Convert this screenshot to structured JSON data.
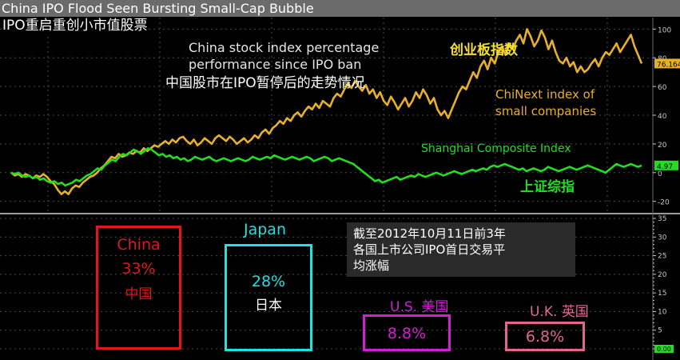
{
  "header": {
    "title": "China IPO Flood Seen Bursting Small-Cap Bubble"
  },
  "subtitle_cn": "IPO重启重创小市值股票",
  "annotation_en": "China stock index percentage\nperformance since IPO ban",
  "annotation_cn": "中国股市在IPO暂停后的走势情况",
  "panel_note": "截至2012年10月11日前3年\n各国上市公司IPO首日交易平\n均涨幅",
  "colors": {
    "chinext": "#e8b02a",
    "shanghai": "#22dd22",
    "china": "#e01818",
    "japan": "#22e0e0",
    "us": "#d020d0",
    "uk": "#e06890",
    "grid": "#4a4a4a",
    "axis": "#c8c8c8"
  },
  "chart_data": [
    {
      "type": "line",
      "series": [
        {
          "name": "ChiNext index of small companies",
          "name_cn": "创业板指数",
          "last_value_label": "76.164",
          "values": [
            0,
            -2,
            -1,
            -3,
            -1,
            -2,
            -4,
            -2,
            -3,
            -1,
            -3,
            -6,
            -8,
            -12,
            -15,
            -13,
            -15,
            -11,
            -9,
            -10,
            -7,
            -5,
            -3,
            -2,
            0,
            3,
            5,
            8,
            11,
            10,
            13,
            11,
            12,
            14,
            13,
            15,
            14,
            17,
            15,
            17,
            19,
            18,
            20,
            22,
            20,
            23,
            21,
            24,
            25,
            22,
            20,
            23,
            19,
            21,
            24,
            22,
            20,
            24,
            26,
            24,
            22,
            25,
            23,
            20,
            22,
            24,
            21,
            23,
            26,
            24,
            28,
            30,
            27,
            31,
            33,
            36,
            34,
            38,
            36,
            40,
            42,
            39,
            43,
            46,
            44,
            48,
            45,
            50,
            48,
            46,
            52,
            55,
            53,
            58,
            62,
            59,
            64,
            60,
            57,
            61,
            55,
            58,
            52,
            56,
            50,
            47,
            53,
            49,
            44,
            48,
            52,
            46,
            50,
            56,
            52,
            58,
            54,
            48,
            52,
            44,
            40,
            43,
            38,
            44,
            50,
            56,
            60,
            58,
            64,
            70,
            66,
            74,
            78,
            72,
            80,
            76,
            84,
            88,
            82,
            90,
            86,
            92,
            96,
            90,
            100,
            95,
            88,
            92,
            99,
            94,
            86,
            92,
            84,
            78,
            76,
            80,
            74,
            77,
            70,
            74,
            70,
            72,
            76,
            79,
            74,
            80,
            84,
            82,
            86,
            90,
            84,
            88,
            92,
            96,
            88,
            82,
            76
          ]
        },
        {
          "name": "Shanghai Composite Index",
          "name_cn": "上证综指",
          "last_value_label": "4.97",
          "values": [
            0,
            -1,
            0,
            -2,
            -3,
            -2,
            -4,
            -3,
            -5,
            -4,
            -6,
            -7,
            -6,
            -8,
            -7,
            -9,
            -8,
            -7,
            -5,
            -6,
            -4,
            -2,
            -1,
            1,
            3,
            2,
            5,
            7,
            9,
            8,
            11,
            13,
            12,
            14,
            16,
            15,
            13,
            15,
            17,
            16,
            14,
            12,
            13,
            11,
            12,
            10,
            11,
            9,
            10,
            8,
            9,
            11,
            10,
            9,
            10,
            11,
            9,
            8,
            9,
            10,
            9,
            8,
            9,
            10,
            9,
            8,
            9,
            11,
            10,
            9,
            10,
            11,
            10,
            12,
            11,
            10,
            9,
            10,
            11,
            10,
            9,
            10,
            11,
            10,
            8,
            9,
            10,
            11,
            10,
            8,
            9,
            10,
            9,
            8,
            7,
            6,
            4,
            2,
            0,
            -2,
            -4,
            -6,
            -5,
            -7,
            -6,
            -5,
            -4,
            -3,
            -5,
            -4,
            -3,
            -2,
            -3,
            -1,
            -2,
            -3,
            -2,
            -1,
            0,
            -1,
            -2,
            -1,
            0,
            1,
            0,
            -1,
            0,
            1,
            2,
            1,
            2,
            3,
            2,
            4,
            5,
            4,
            5,
            6,
            5,
            4,
            3,
            2,
            3,
            1,
            2,
            3,
            2,
            1,
            2,
            4,
            3,
            2,
            1,
            2,
            3,
            4,
            3,
            2,
            3,
            4,
            5,
            4,
            3,
            2,
            1,
            0,
            2,
            4,
            6,
            5,
            4,
            5,
            6,
            5,
            4,
            5
          ]
        }
      ],
      "yticks": [
        100,
        80,
        60,
        40,
        20,
        0,
        -20
      ],
      "ylim": [
        -28,
        108
      ]
    },
    {
      "type": "bar",
      "categories": [
        "China",
        "Japan",
        "U.S.",
        "U.K."
      ],
      "categories_cn": [
        "中国",
        "日本",
        "美国",
        "英国"
      ],
      "values": [
        33,
        28,
        8.8,
        6.8
      ],
      "value_labels": [
        "33%",
        "28%",
        "8.8%",
        "6.8%"
      ],
      "yticks": [
        35,
        30,
        25,
        20,
        15,
        10,
        5,
        "0.00"
      ],
      "ylim": [
        0,
        35
      ]
    }
  ]
}
